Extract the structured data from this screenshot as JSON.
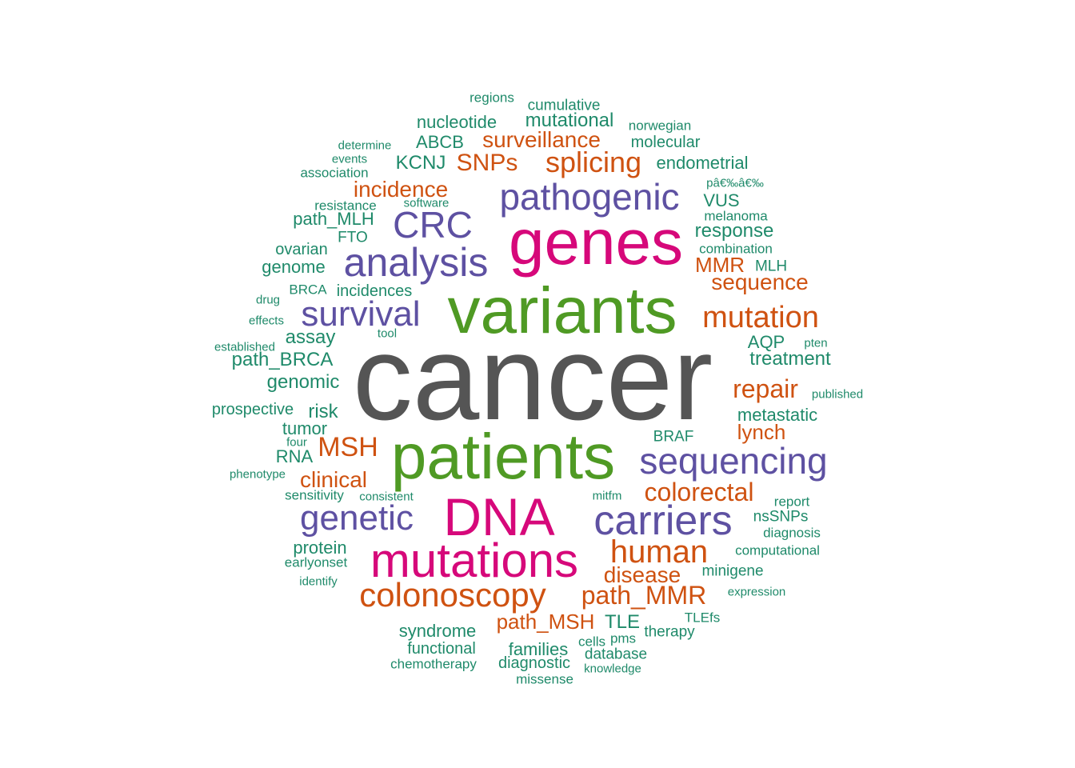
{
  "colors": {
    "gray": "#555555",
    "green": "#4f9a24",
    "magenta": "#d6087a",
    "purple": "#5e51a2",
    "orange": "#cf5211",
    "teal": "#1f8a6a"
  },
  "words": {
    "cancer": "cancer",
    "variants": "variants",
    "genes": "genes",
    "patients": "patients",
    "dna": "DNA",
    "mutations": "mutations",
    "pathogenic": "pathogenic",
    "crc": "CRC",
    "analysis": "analysis",
    "survival": "survival",
    "sequencing": "sequencing",
    "carriers": "carriers",
    "genetic": "genetic",
    "splicing": "splicing",
    "surveillance": "surveillance",
    "snps": "SNPs",
    "incidence": "incidence",
    "mutation": "mutation",
    "sequence": "sequence",
    "mmr": "MMR",
    "repair": "repair",
    "msh": "MSH",
    "clinical": "clinical",
    "colorectal": "colorectal",
    "human": "human",
    "disease": "disease",
    "colonoscopy": "colonoscopy",
    "path_mmr": "path_MMR",
    "path_msh": "path_MSH",
    "lynch": "lynch",
    "regions": "regions",
    "cumulative": "cumulative",
    "nucleotide": "nucleotide",
    "mutational": "mutational",
    "norwegian": "norwegian",
    "molecular": "molecular",
    "determine": "determine",
    "abcb": "ABCB",
    "events": "events",
    "kcnj": "KCNJ",
    "endometrial": "endometrial",
    "association": "association",
    "pa_garbled": "pâ€‰â€‰",
    "resistance": "resistance",
    "software": "software",
    "vus": "VUS",
    "path_mlh": "path_MLH",
    "melanoma": "melanoma",
    "fto": "FTO",
    "response": "response",
    "ovarian": "ovarian",
    "combination": "combination",
    "genome": "genome",
    "mlh": "MLH",
    "brca": "BRCA",
    "incidences": "incidences",
    "drug": "drug",
    "effects": "effects",
    "tool": "tool",
    "assay": "assay",
    "aqp": "AQP",
    "pten": "pten",
    "established": "established",
    "path_brca": "path_BRCA",
    "treatment": "treatment",
    "genomic": "genomic",
    "published": "published",
    "prospective": "prospective",
    "risk": "risk",
    "metastatic": "metastatic",
    "tumor": "tumor",
    "four": "four",
    "braf": "BRAF",
    "rna": "RNA",
    "phenotype": "phenotype",
    "sensitivity": "sensitivity",
    "consistent": "consistent",
    "mitfm": "mitfm",
    "report": "report",
    "nssnps": "nsSNPs",
    "diagnosis": "diagnosis",
    "protein": "protein",
    "computational": "computational",
    "earlyonset": "earlyonset",
    "minigene": "minigene",
    "identify": "identify",
    "expression": "expression",
    "tle": "TLE",
    "tlefs": "TLEfs",
    "syndrome": "syndrome",
    "therapy": "therapy",
    "pms": "pms",
    "functional": "functional",
    "cells": "cells",
    "families": "families",
    "database": "database",
    "chemotherapy": "chemotherapy",
    "diagnostic": "diagnostic",
    "knowledge": "knowledge",
    "missense": "missense"
  }
}
